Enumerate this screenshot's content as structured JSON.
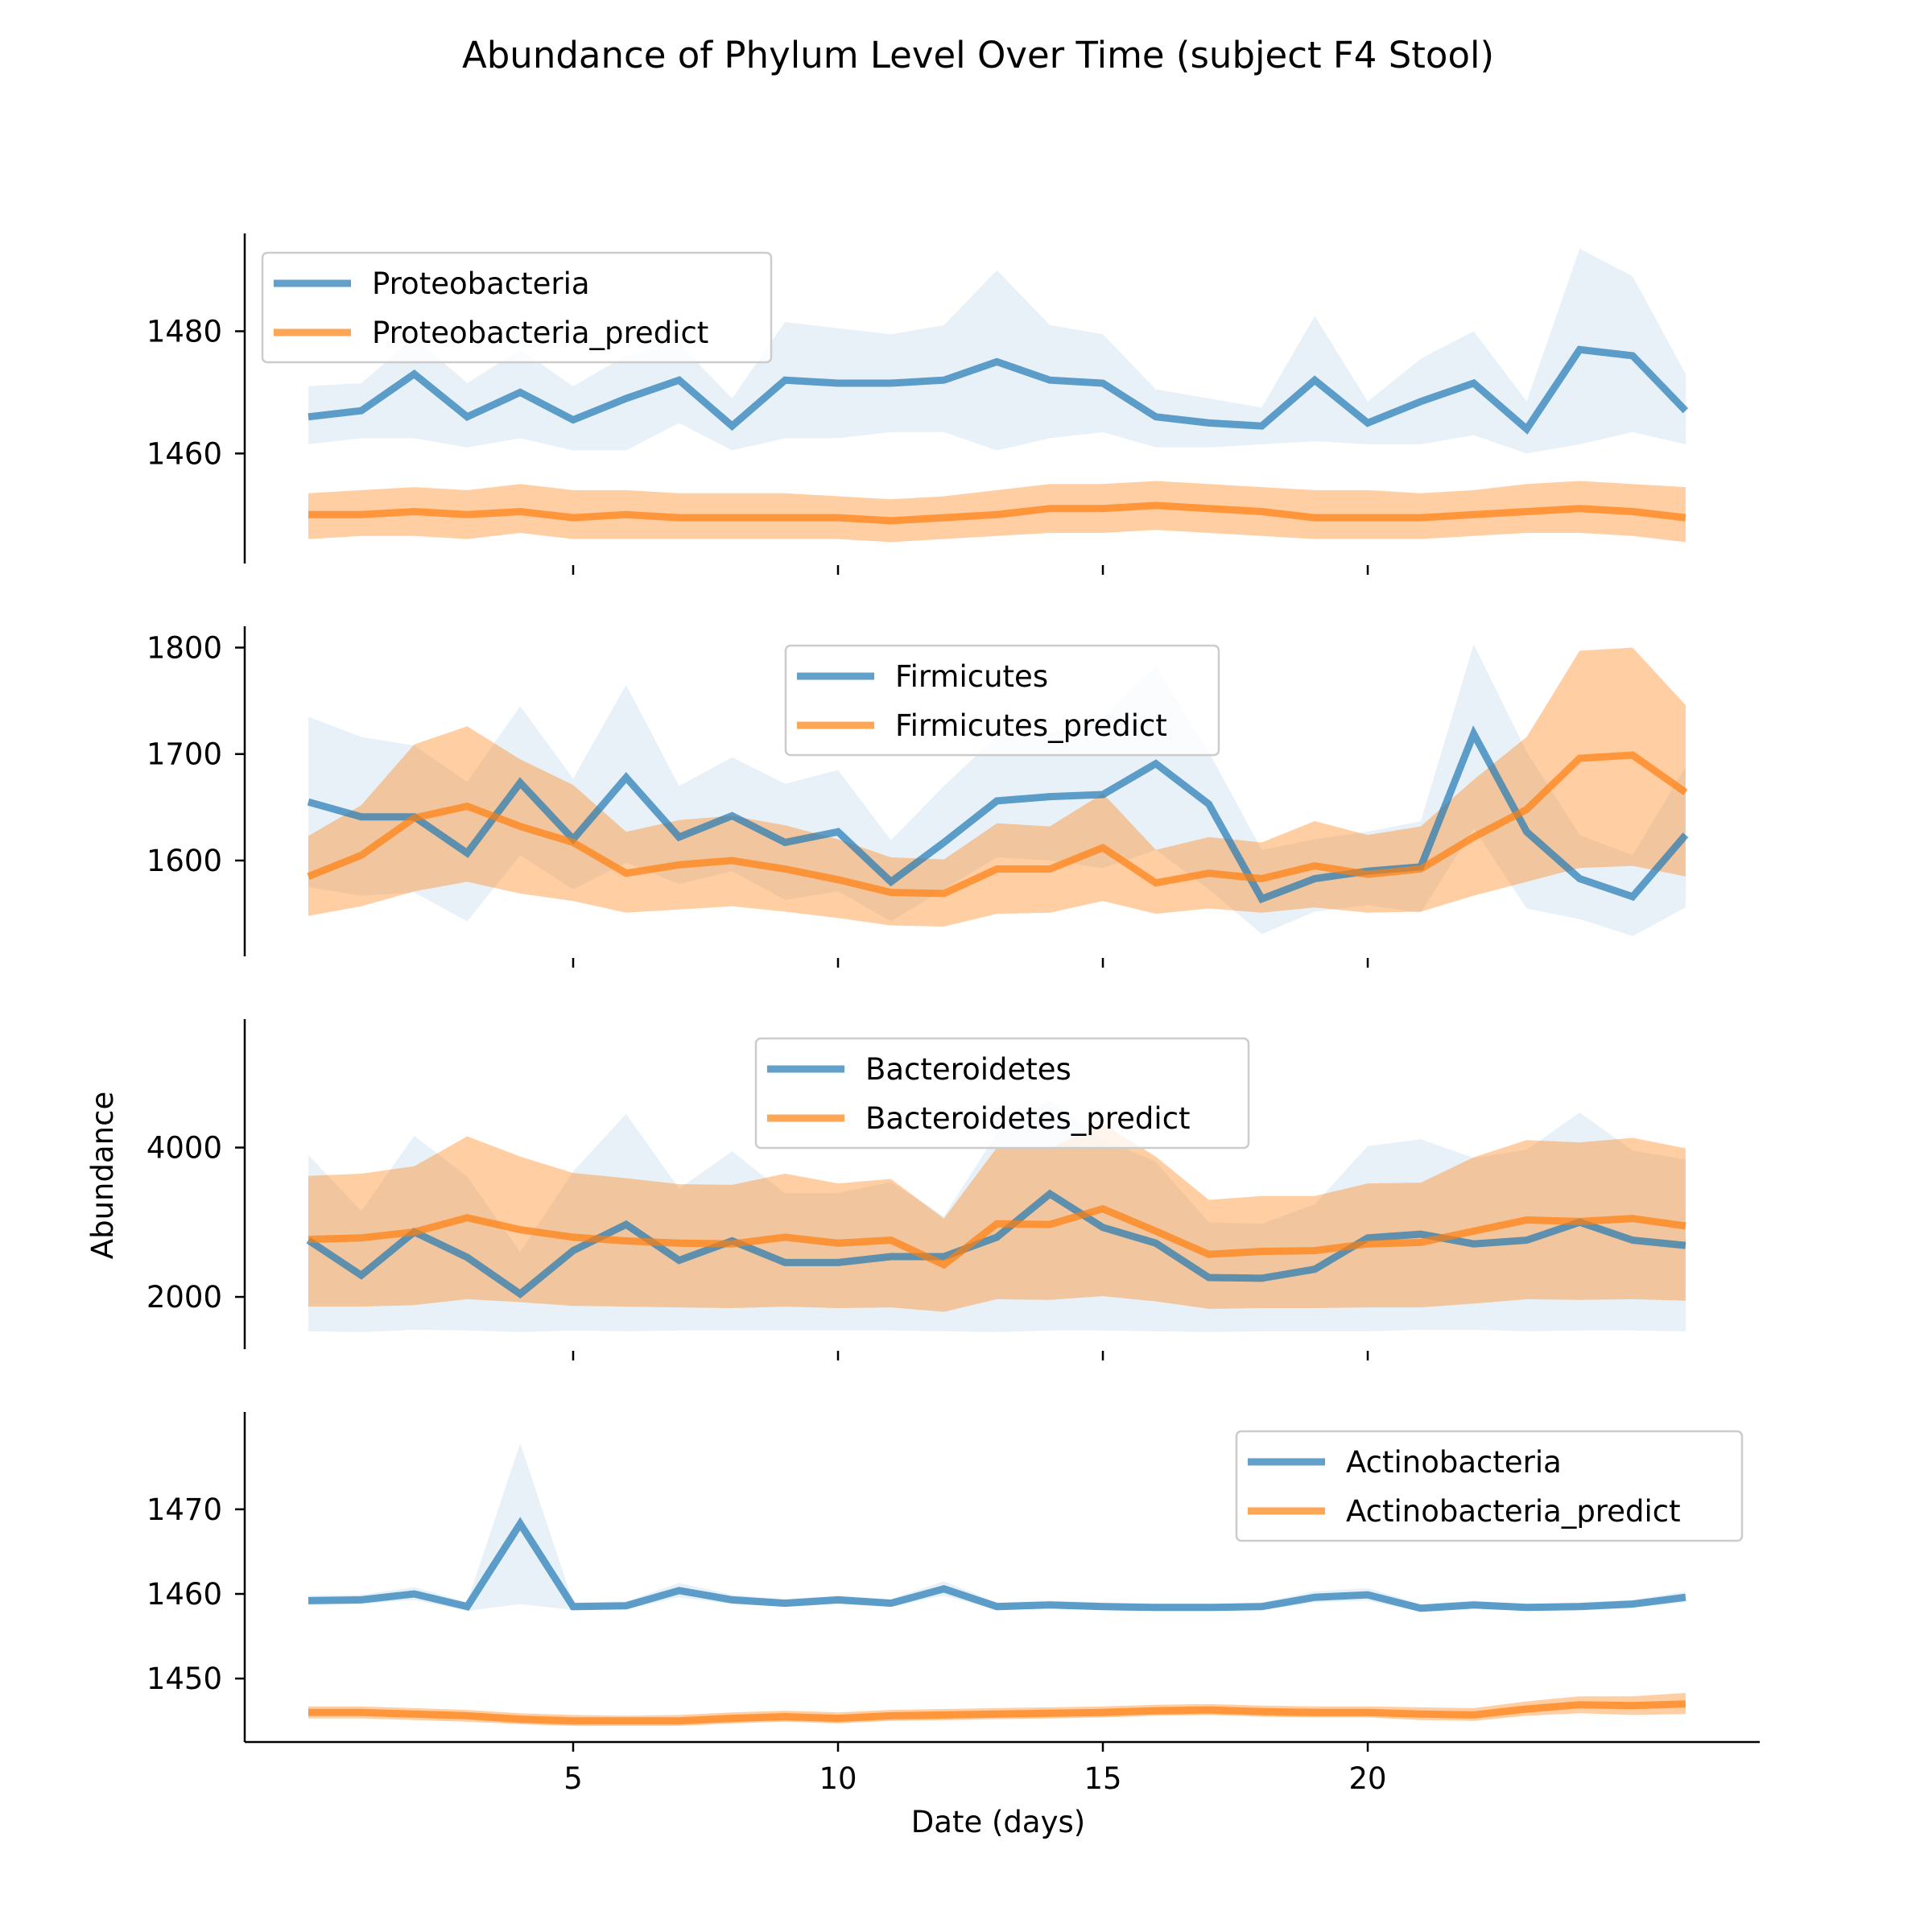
{
  "figure": {
    "title": "Abundance of Phylum Level Over Time (subject F4 Stool)",
    "xlabel": "Date (days)",
    "ylabel": "Abundance"
  },
  "colors": {
    "observed": "#1f77b4",
    "predict": "#ff7f0e"
  },
  "chart_data": [
    {
      "type": "line",
      "name": "Proteobacteria",
      "x": [
        0,
        1,
        2,
        3,
        4,
        5,
        6,
        7,
        8,
        9,
        10,
        11,
        12,
        13,
        14,
        15,
        16,
        17,
        18,
        19,
        20,
        21,
        22,
        23,
        24,
        25,
        26
      ],
      "xticks": [
        5,
        10,
        15,
        20
      ],
      "xlim": [
        -1.2,
        27.4
      ],
      "ylim": [
        1442,
        1496
      ],
      "yticks": [
        1460,
        1480
      ],
      "ytick_labels": [
        "1460",
        "1480"
      ],
      "legend": "top-left",
      "series": [
        {
          "name": "Proteobacteria",
          "role": "observed",
          "values": [
            1466,
            1467,
            1473,
            1466,
            1470,
            1465.5,
            1469,
            1472,
            1464.5,
            1472,
            1471.5,
            1471.5,
            1472,
            1475,
            1472,
            1471.5,
            1466,
            1465,
            1464.5,
            1472,
            1465,
            1468.5,
            1471.5,
            1464,
            1477,
            1476,
            1467
          ],
          "lower": [
            1461.5,
            1462.5,
            1462.5,
            1461,
            1462.5,
            1460.5,
            1460.5,
            1465,
            1460.5,
            1462.5,
            1462.5,
            1463.5,
            1463.5,
            1460.5,
            1462.5,
            1463.5,
            1461,
            1461,
            1461.5,
            1462,
            1461.5,
            1461.5,
            1463,
            1460,
            1461.5,
            1463.5,
            1461.5
          ],
          "upper": [
            1471,
            1471.5,
            1479,
            1471.5,
            1477,
            1471,
            1476,
            1478,
            1469,
            1481.5,
            1480.5,
            1479.5,
            1481,
            1490,
            1481,
            1479.5,
            1470.5,
            1469,
            1467.5,
            1482.5,
            1468.5,
            1475.5,
            1480,
            1468.5,
            1493.5,
            1489,
            1473
          ]
        },
        {
          "name": "Proteobacteria_predict",
          "role": "predict",
          "values": [
            1450,
            1450,
            1450.5,
            1450,
            1450.5,
            1449.5,
            1450,
            1449.5,
            1449.5,
            1449.5,
            1449.5,
            1449,
            1449.5,
            1450,
            1451,
            1451,
            1451.5,
            1451,
            1450.5,
            1449.5,
            1449.5,
            1449.5,
            1450,
            1450.5,
            1451,
            1450.5,
            1449.5
          ],
          "lower": [
            1446,
            1446.5,
            1446.5,
            1446,
            1447,
            1446,
            1446,
            1446,
            1446,
            1446,
            1446,
            1445.5,
            1446,
            1446.5,
            1447,
            1447,
            1447.5,
            1447,
            1446.5,
            1446,
            1446,
            1446,
            1446.5,
            1447,
            1447,
            1446.5,
            1445.5
          ],
          "upper": [
            1453.5,
            1454,
            1454.5,
            1454,
            1455,
            1454,
            1454,
            1453.5,
            1453.5,
            1453.5,
            1453,
            1452.5,
            1453,
            1454,
            1455,
            1455,
            1455.5,
            1455,
            1454.5,
            1454,
            1454,
            1453.5,
            1454,
            1455,
            1455.5,
            1455,
            1454.5
          ]
        }
      ]
    },
    {
      "type": "line",
      "name": "Firmicutes",
      "x": [
        0,
        1,
        2,
        3,
        4,
        5,
        6,
        7,
        8,
        9,
        10,
        11,
        12,
        13,
        14,
        15,
        16,
        17,
        18,
        19,
        20,
        21,
        22,
        23,
        24,
        25,
        26
      ],
      "xticks": [
        5,
        10,
        15,
        20
      ],
      "xlim": [
        -1.2,
        27.4
      ],
      "ylim": [
        1510,
        1820
      ],
      "yticks": [
        1600,
        1700,
        1800
      ],
      "ytick_labels": [
        "1600",
        "1700",
        "1800"
      ],
      "legend": "top-center",
      "series": [
        {
          "name": "Firmicutes",
          "role": "observed",
          "values": [
            1655,
            1641,
            1641,
            1607,
            1673,
            1620,
            1678,
            1622,
            1642,
            1617,
            1627,
            1580,
            1617,
            1656,
            1660,
            1662,
            1691,
            1653,
            1564,
            1583,
            1590,
            1594,
            1719,
            1627,
            1583,
            1566,
            1624
          ],
          "lower": [
            1575,
            1567,
            1570,
            1543,
            1605,
            1573,
            1598,
            1578,
            1590,
            1563,
            1571,
            1543,
            1573,
            1603,
            1600,
            1593,
            1610,
            1573,
            1531,
            1552,
            1558,
            1551,
            1630,
            1555,
            1545,
            1529,
            1556
          ],
          "upper": [
            1735,
            1716,
            1708,
            1674,
            1745,
            1677,
            1765,
            1670,
            1697,
            1672,
            1685,
            1619,
            1670,
            1717,
            1720,
            1735,
            1782,
            1702,
            1610,
            1620,
            1627,
            1637,
            1803,
            1702,
            1624,
            1605,
            1688
          ]
        },
        {
          "name": "Firmicutes_predict",
          "role": "predict",
          "values": [
            1585,
            1605,
            1640,
            1651,
            1632,
            1617,
            1588,
            1596,
            1600,
            1592,
            1582,
            1570,
            1569,
            1592,
            1592,
            1612,
            1579,
            1588,
            1583,
            1595,
            1587,
            1592,
            1622,
            1648,
            1696,
            1699,
            1664
          ],
          "lower": [
            1548,
            1557,
            1571,
            1580,
            1569,
            1562,
            1551,
            1554,
            1557,
            1552,
            1546,
            1539,
            1538,
            1550,
            1551,
            1562,
            1550,
            1555,
            1551,
            1556,
            1551,
            1552,
            1567,
            1580,
            1593,
            1595,
            1585
          ],
          "upper": [
            1623,
            1652,
            1709,
            1726,
            1695,
            1671,
            1627,
            1638,
            1642,
            1633,
            1620,
            1603,
            1601,
            1635,
            1632,
            1663,
            1610,
            1622,
            1617,
            1637,
            1624,
            1632,
            1676,
            1716,
            1797,
            1800,
            1746
          ]
        }
      ]
    },
    {
      "type": "line",
      "name": "Bacteroidetes",
      "x": [
        0,
        1,
        2,
        3,
        4,
        5,
        6,
        7,
        8,
        9,
        10,
        11,
        12,
        13,
        14,
        15,
        16,
        17,
        18,
        19,
        20,
        21,
        22,
        23,
        24,
        25,
        26
      ],
      "xticks": [
        5,
        10,
        15,
        20
      ],
      "xlim": [
        -1.2,
        27.4
      ],
      "ylim": [
        1300,
        5720
      ],
      "yticks": [
        2000,
        4000
      ],
      "ytick_labels": [
        "2000",
        "4000"
      ],
      "legend": "top-center",
      "series": [
        {
          "name": "Bacteroidetes",
          "role": "observed",
          "values": [
            2760,
            2290,
            2870,
            2530,
            2040,
            2620,
            2970,
            2490,
            2750,
            2460,
            2460,
            2540,
            2540,
            2800,
            3380,
            2930,
            2720,
            2260,
            2250,
            2370,
            2790,
            2840,
            2710,
            2760,
            3000,
            2760,
            2690
          ],
          "lower": [
            1540,
            1530,
            1560,
            1550,
            1530,
            1550,
            1540,
            1550,
            1550,
            1550,
            1550,
            1550,
            1540,
            1530,
            1550,
            1550,
            1540,
            1530,
            1540,
            1540,
            1540,
            1560,
            1560,
            1540,
            1550,
            1550,
            1540
          ],
          "upper": [
            3900,
            3150,
            4160,
            3610,
            2600,
            3680,
            4450,
            3450,
            3950,
            3390,
            3390,
            3540,
            3080,
            4190,
            4640,
            4120,
            3810,
            3000,
            2980,
            3240,
            4020,
            4110,
            3860,
            3970,
            4470,
            3960,
            3840
          ]
        },
        {
          "name": "Bacteroidetes_predict",
          "role": "predict",
          "values": [
            2770,
            2790,
            2870,
            3060,
            2900,
            2800,
            2750,
            2720,
            2710,
            2800,
            2720,
            2760,
            2430,
            2980,
            2970,
            3180,
            2880,
            2570,
            2610,
            2620,
            2710,
            2730,
            2880,
            3030,
            3010,
            3050,
            2950
          ],
          "lower": [
            1870,
            1870,
            1890,
            1970,
            1930,
            1880,
            1870,
            1860,
            1850,
            1870,
            1850,
            1860,
            1800,
            1970,
            1960,
            2010,
            1940,
            1840,
            1850,
            1850,
            1860,
            1860,
            1910,
            1970,
            1960,
            1970,
            1950
          ],
          "upper": [
            3620,
            3650,
            3750,
            4150,
            3880,
            3660,
            3590,
            3510,
            3500,
            3650,
            3520,
            3580,
            3050,
            4000,
            3990,
            4320,
            3880,
            3300,
            3350,
            3350,
            3520,
            3530,
            3870,
            4100,
            4070,
            4130,
            3990
          ]
        }
      ]
    },
    {
      "type": "line",
      "name": "Actinobacteria",
      "x": [
        0,
        1,
        2,
        3,
        4,
        5,
        6,
        7,
        8,
        9,
        10,
        11,
        12,
        13,
        14,
        15,
        16,
        17,
        18,
        19,
        20,
        21,
        22,
        23,
        24,
        25,
        26
      ],
      "xticks": [
        5,
        10,
        15,
        20
      ],
      "xlim": [
        -1.2,
        27.4
      ],
      "ylim": [
        1442.5,
        1481.5
      ],
      "yticks": [
        1450,
        1460,
        1470
      ],
      "ytick_labels": [
        "1450",
        "1460",
        "1470"
      ],
      "legend": "top-right",
      "series": [
        {
          "name": "Actinobacteria",
          "role": "observed",
          "values": [
            1459.2,
            1459.3,
            1460,
            1458.5,
            1468.3,
            1458.5,
            1458.6,
            1460.4,
            1459.3,
            1458.9,
            1459.3,
            1458.9,
            1460.6,
            1458.5,
            1458.7,
            1458.5,
            1458.4,
            1458.4,
            1458.5,
            1459.6,
            1459.9,
            1458.3,
            1458.7,
            1458.4,
            1458.5,
            1458.8,
            1459.6
          ],
          "lower": [
            1458.7,
            1458.8,
            1459.3,
            1458,
            1458.8,
            1458.1,
            1458.2,
            1459.6,
            1458.8,
            1458.5,
            1458.8,
            1458.5,
            1459.8,
            1458.1,
            1458.3,
            1458.1,
            1458,
            1458,
            1458.1,
            1459,
            1459.2,
            1457.9,
            1458.3,
            1458,
            1458.1,
            1458.4,
            1459
          ],
          "upper": [
            1459.8,
            1459.9,
            1460.8,
            1459,
            1477.8,
            1459,
            1459.1,
            1461.3,
            1459.9,
            1459.4,
            1459.8,
            1459.4,
            1461.5,
            1459,
            1459.2,
            1459,
            1458.8,
            1458.8,
            1459,
            1460.3,
            1460.7,
            1458.8,
            1459.2,
            1458.8,
            1459,
            1459.3,
            1460.3
          ]
        },
        {
          "name": "Actinobacteria_predict",
          "role": "predict",
          "values": [
            1446,
            1446,
            1445.8,
            1445.6,
            1445.2,
            1445,
            1445,
            1445,
            1445.3,
            1445.5,
            1445.3,
            1445.6,
            1445.7,
            1445.8,
            1445.9,
            1446,
            1446.2,
            1446.3,
            1446.1,
            1446,
            1446,
            1445.8,
            1445.7,
            1446.4,
            1446.9,
            1446.8,
            1447
          ],
          "lower": [
            1445.3,
            1445.3,
            1445.1,
            1444.9,
            1444.6,
            1444.4,
            1444.4,
            1444.4,
            1444.7,
            1444.9,
            1444.7,
            1445,
            1445.1,
            1445.2,
            1445.3,
            1445.4,
            1445.6,
            1445.7,
            1445.5,
            1445.4,
            1445.4,
            1445.1,
            1445,
            1445.6,
            1445.9,
            1445.7,
            1445.8
          ],
          "upper": [
            1446.7,
            1446.7,
            1446.5,
            1446.3,
            1445.9,
            1445.7,
            1445.6,
            1445.7,
            1446,
            1446.2,
            1446,
            1446.3,
            1446.4,
            1446.5,
            1446.6,
            1446.7,
            1446.9,
            1447,
            1446.8,
            1446.7,
            1446.7,
            1446.6,
            1446.5,
            1447.3,
            1447.9,
            1447.9,
            1448.3
          ]
        }
      ]
    }
  ]
}
